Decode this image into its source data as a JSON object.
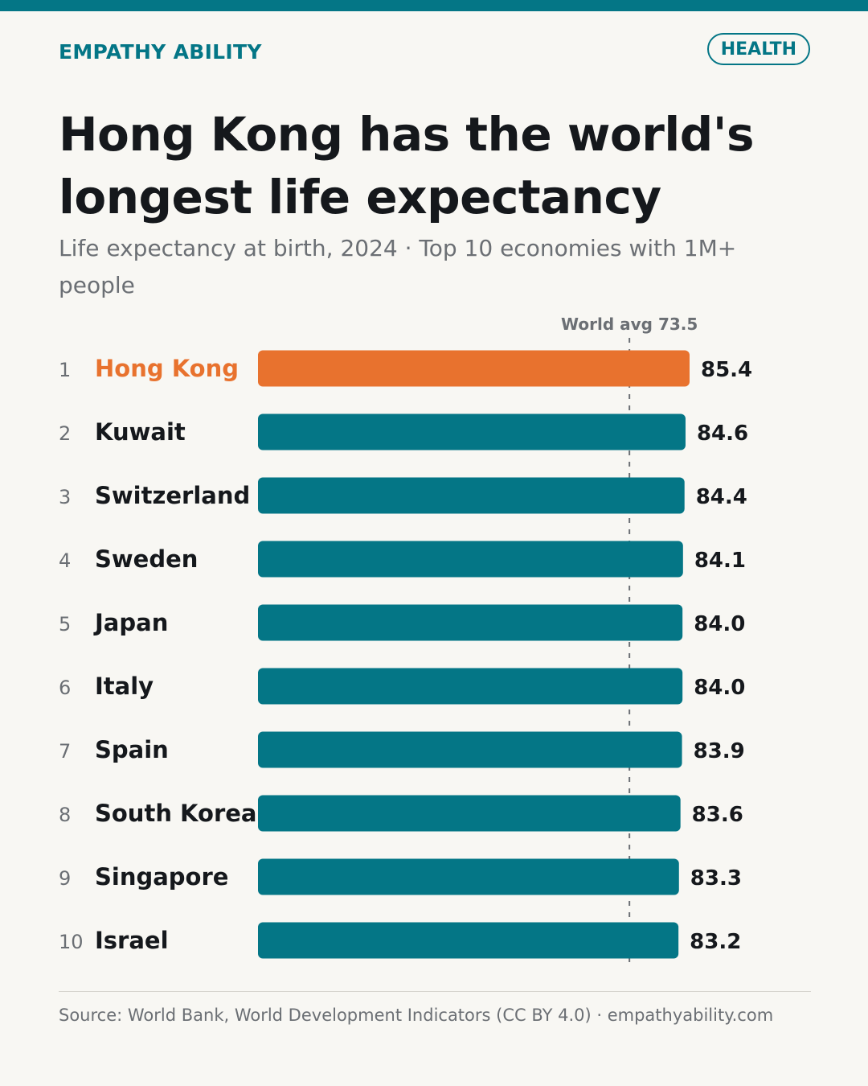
{
  "header": {
    "brand": "EMPATHY ABILITY",
    "tag": "HEALTH",
    "title": "Hong Kong has the world's longest life expectancy",
    "subtitle": "Life expectancy at birth, 2024 · Top 10 economies with 1M+ people"
  },
  "colors": {
    "accent": "#047686",
    "highlight": "#e8722e",
    "text": "#15181c",
    "muted": "#6b6f74",
    "background": "#f8f7f3"
  },
  "chart_data": {
    "type": "bar",
    "orientation": "horizontal",
    "title": "Hong Kong has the world's longest life expectancy",
    "subtitle": "Life expectancy at birth, 2024 · Top 10 economies with 1M+ people",
    "ranks": [
      "1",
      "2",
      "3",
      "4",
      "5",
      "6",
      "7",
      "8",
      "9",
      "10"
    ],
    "categories": [
      "Hong Kong",
      "Kuwait",
      "Switzerland",
      "Sweden",
      "Japan",
      "Italy",
      "Spain",
      "South Korea",
      "Singapore",
      "Israel"
    ],
    "values": [
      85.4,
      84.6,
      84.4,
      84.1,
      84.0,
      84.0,
      83.9,
      83.6,
      83.3,
      83.2
    ],
    "value_labels": [
      "85.4",
      "84.6",
      "84.4",
      "84.1",
      "84.0",
      "84.0",
      "83.9",
      "83.6",
      "83.3",
      "83.2"
    ],
    "highlight_index": 0,
    "reference_line": {
      "label": "World avg 73.5",
      "value": 73.5
    },
    "xlim": [
      0,
      85.4
    ],
    "grid": false
  },
  "footer": {
    "source": "Source: World Bank, World Development Indicators (CC BY 4.0) · empathyability.com"
  }
}
